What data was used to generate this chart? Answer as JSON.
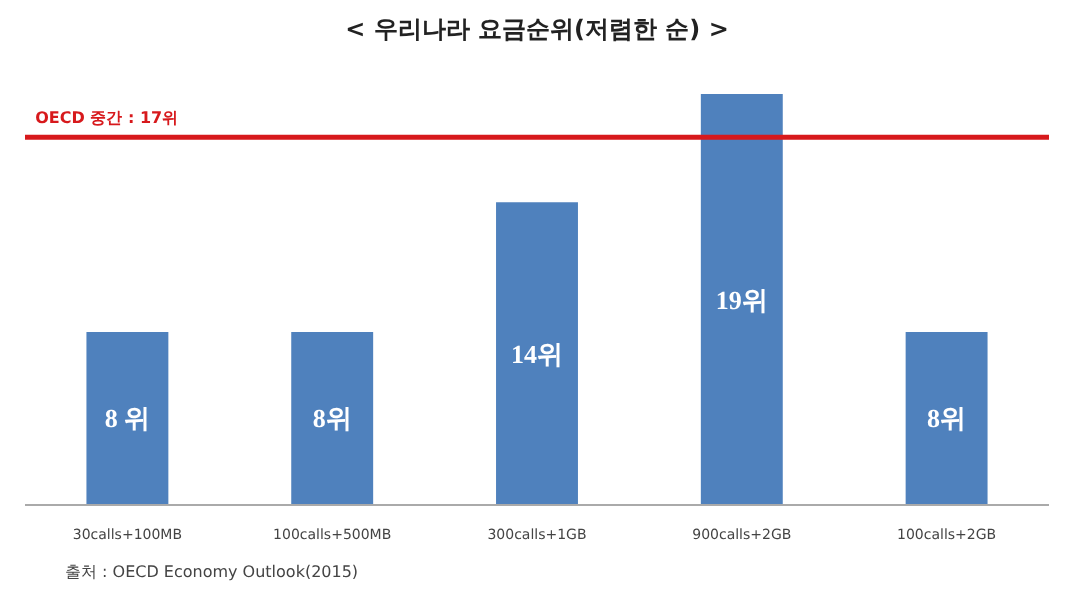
{
  "chart_data": {
    "type": "bar",
    "title": "< 우리나라 요금순위(저렴한 순) >",
    "categories": [
      "30calls+100MB",
      "100calls+500MB",
      "300calls+1GB",
      "900calls+2GB",
      "100calls+2GB"
    ],
    "values": [
      8,
      8,
      14,
      19,
      8
    ],
    "value_labels": [
      "8 위",
      "8위",
      "14위",
      "19위",
      "8위"
    ],
    "color": "#4f81bd",
    "ref_lines": [
      {
        "axis": "y",
        "value": 17,
        "label": "OECD 중간 : 17위",
        "color": "#d7191c"
      }
    ],
    "annotations": [
      "출처 : OECD Economy Outlook(2015)"
    ],
    "grid": false
  }
}
